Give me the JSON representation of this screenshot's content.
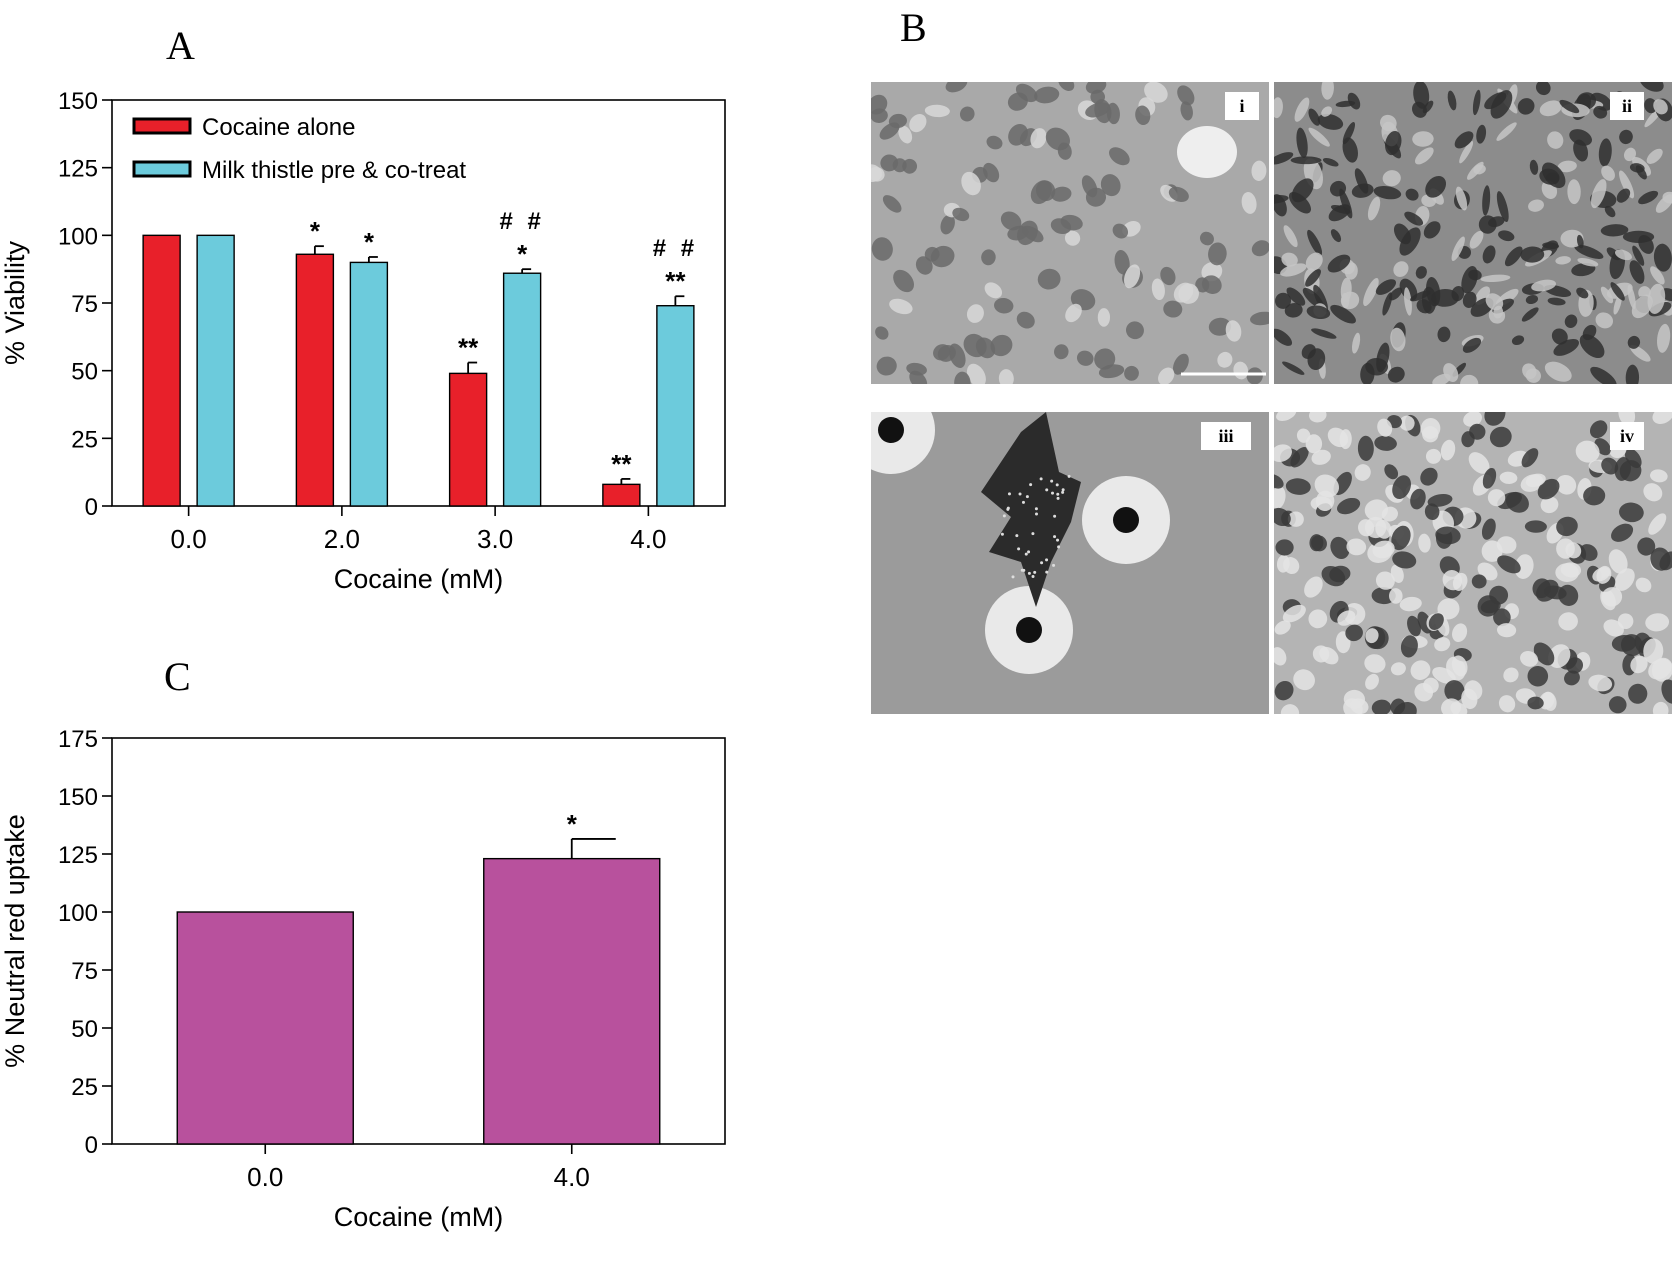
{
  "panels": {
    "a": "A",
    "b": "B",
    "c": "C"
  },
  "chart_data": [
    {
      "type": "bar",
      "panel": "A",
      "categories": [
        "0.0",
        "2.0",
        "3.0",
        "4.0"
      ],
      "series": [
        {
          "name": "Cocaine alone",
          "color": "#e8202a",
          "values": [
            100,
            93,
            49,
            8
          ],
          "errors": [
            0,
            3,
            4,
            2
          ],
          "annotations": [
            "",
            "*",
            "**",
            "**"
          ]
        },
        {
          "name": "Milk thistle pre & co-treat",
          "color": "#6ccbdc",
          "values": [
            100,
            90,
            86,
            74
          ],
          "errors": [
            0,
            2,
            1.5,
            3.5
          ],
          "annotations": [
            "",
            "*",
            "*",
            "**"
          ],
          "annotations2": [
            "",
            "",
            "##",
            "##"
          ]
        }
      ],
      "xlabel": "Cocaine (mM)",
      "ylabel": "% Viability",
      "ylim": [
        0,
        150
      ],
      "yticks": [
        "0",
        "25",
        "50",
        "75",
        "100",
        "125",
        "150"
      ],
      "legend": "top-left",
      "grid": false
    },
    {
      "type": "bar",
      "panel": "C",
      "categories": [
        "0.0",
        "4.0"
      ],
      "series": [
        {
          "color": "#b8519d",
          "values": [
            100,
            123
          ],
          "errors": [
            0,
            8.5
          ],
          "annotations": [
            "",
            "*"
          ]
        }
      ],
      "xlabel": "Cocaine (mM)",
      "ylabel": "% Neutral red uptake",
      "ylim": [
        0,
        175
      ],
      "yticks": [
        "0",
        "25",
        "50",
        "75",
        "100",
        "125",
        "150",
        "175"
      ],
      "grid": false
    }
  ],
  "micrographs": [
    {
      "label": "i",
      "texture": "epithelial-cells"
    },
    {
      "label": "ii",
      "texture": "dense-dark-cells"
    },
    {
      "label": "iii",
      "texture": "isolated-cells"
    },
    {
      "label": "iv",
      "texture": "dense-round-cells"
    }
  ]
}
